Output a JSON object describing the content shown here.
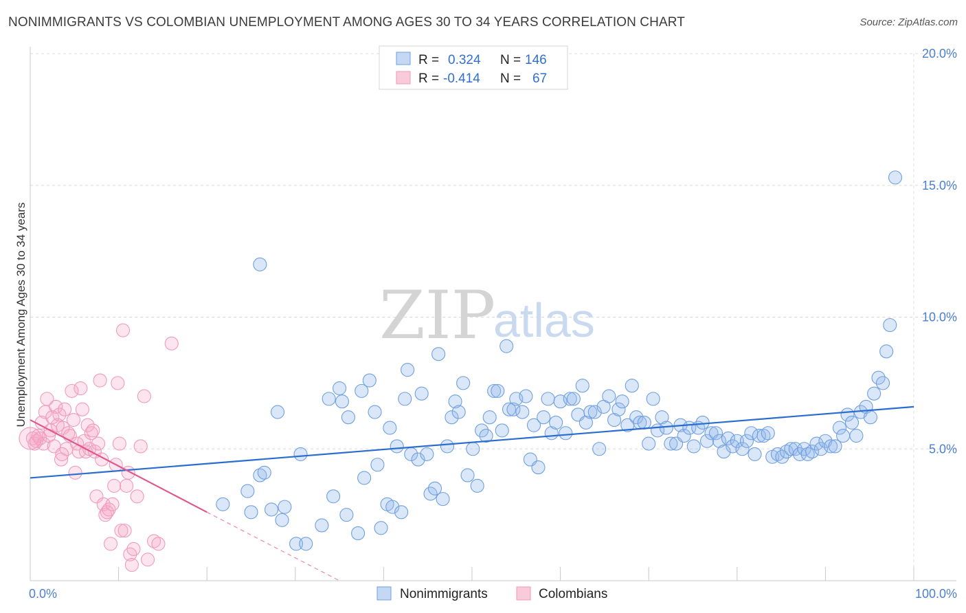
{
  "header": {
    "title": "NONIMMIGRANTS VS COLOMBIAN UNEMPLOYMENT AMONG AGES 30 TO 34 YEARS CORRELATION CHART",
    "source": "Source: ZipAtlas.com"
  },
  "watermark": {
    "zip": "ZIP",
    "atlas": "atlas"
  },
  "chart_data": {
    "type": "scatter",
    "title": "NONIMMIGRANTS VS COLOMBIAN UNEMPLOYMENT AMONG AGES 30 TO 34 YEARS CORRELATION CHART",
    "xlabel": "",
    "ylabel": "Unemployment Among Ages 30 to 34 years",
    "xlim": [
      0,
      100
    ],
    "ylim": [
      0,
      20
    ],
    "x_tick_labels": [
      "0.0%",
      "100.0%"
    ],
    "y_ticks": [
      {
        "value": 5,
        "label": "5.0%"
      },
      {
        "value": 10,
        "label": "10.0%"
      },
      {
        "value": 15,
        "label": "15.0%"
      },
      {
        "value": 20,
        "label": "20.0%"
      }
    ],
    "grid": true,
    "legend_position": "top-center",
    "colors": {
      "nonimmigrants": "#6f9fe0",
      "colombians": "#f19ab8",
      "nonimmigrants_line": "#2a6dd0",
      "colombians_line": "#e0588a"
    },
    "series": [
      {
        "name": "Nonimmigrants",
        "r": "0.324",
        "n": "146",
        "trend": {
          "x": [
            0,
            100
          ],
          "y": [
            3.9,
            6.6
          ]
        },
        "points": [
          [
            26,
            12.0
          ],
          [
            21.8,
            2.9
          ],
          [
            24.6,
            3.4
          ],
          [
            25.0,
            2.6
          ],
          [
            26.0,
            4.0
          ],
          [
            26.5,
            4.1
          ],
          [
            27.3,
            2.7
          ],
          [
            28.0,
            6.4
          ],
          [
            28.5,
            2.3
          ],
          [
            28.8,
            2.8
          ],
          [
            30.1,
            1.4
          ],
          [
            30.6,
            4.8
          ],
          [
            31.2,
            1.4
          ],
          [
            33.0,
            2.1
          ],
          [
            33.8,
            6.9
          ],
          [
            34.3,
            3.2
          ],
          [
            35.0,
            7.3
          ],
          [
            35.3,
            6.8
          ],
          [
            35.8,
            2.5
          ],
          [
            36.0,
            6.2
          ],
          [
            37.1,
            1.8
          ],
          [
            37.5,
            7.2
          ],
          [
            37.8,
            3.9
          ],
          [
            38.4,
            7.6
          ],
          [
            39.0,
            6.4
          ],
          [
            39.3,
            4.4
          ],
          [
            39.7,
            2.0
          ],
          [
            40.4,
            2.9
          ],
          [
            40.7,
            5.8
          ],
          [
            41.0,
            2.8
          ],
          [
            41.5,
            5.1
          ],
          [
            42.0,
            2.6
          ],
          [
            42.4,
            6.9
          ],
          [
            42.7,
            8.0
          ],
          [
            43.1,
            4.8
          ],
          [
            43.9,
            4.6
          ],
          [
            44.3,
            7.1
          ],
          [
            44.9,
            4.8
          ],
          [
            45.3,
            3.3
          ],
          [
            45.8,
            3.5
          ],
          [
            46.2,
            8.6
          ],
          [
            46.7,
            3.1
          ],
          [
            47.2,
            5.1
          ],
          [
            47.7,
            6.2
          ],
          [
            48.1,
            6.8
          ],
          [
            48.5,
            6.4
          ],
          [
            49.0,
            7.5
          ],
          [
            49.5,
            4.0
          ],
          [
            50.1,
            5.0
          ],
          [
            50.6,
            3.6
          ],
          [
            51.1,
            5.7
          ],
          [
            51.6,
            5.5
          ],
          [
            52.0,
            6.2
          ],
          [
            52.5,
            7.2
          ],
          [
            52.9,
            7.2
          ],
          [
            53.4,
            5.7
          ],
          [
            53.9,
            8.9
          ],
          [
            54.2,
            6.5
          ],
          [
            54.7,
            6.5
          ],
          [
            55.0,
            6.9
          ],
          [
            55.7,
            6.4
          ],
          [
            56.1,
            7.0
          ],
          [
            56.6,
            4.6
          ],
          [
            57.0,
            5.9
          ],
          [
            57.5,
            4.3
          ],
          [
            58.1,
            6.2
          ],
          [
            58.6,
            6.9
          ],
          [
            59.0,
            5.6
          ],
          [
            59.5,
            6.0
          ],
          [
            60.0,
            6.8
          ],
          [
            60.6,
            5.6
          ],
          [
            61.1,
            6.9
          ],
          [
            61.5,
            6.9
          ],
          [
            62.0,
            6.3
          ],
          [
            62.5,
            7.4
          ],
          [
            62.9,
            6.0
          ],
          [
            63.4,
            6.4
          ],
          [
            63.9,
            6.4
          ],
          [
            64.4,
            5.0
          ],
          [
            64.9,
            6.6
          ],
          [
            65.5,
            7.0
          ],
          [
            66.1,
            6.1
          ],
          [
            66.6,
            6.5
          ],
          [
            67.0,
            6.8
          ],
          [
            67.6,
            5.9
          ],
          [
            68.1,
            7.4
          ],
          [
            68.6,
            6.2
          ],
          [
            69.0,
            6.0
          ],
          [
            69.5,
            6.0
          ],
          [
            70.0,
            5.2
          ],
          [
            70.5,
            6.9
          ],
          [
            71.0,
            5.7
          ],
          [
            71.5,
            6.2
          ],
          [
            72.0,
            5.8
          ],
          [
            72.5,
            5.2
          ],
          [
            73.1,
            5.2
          ],
          [
            73.6,
            5.9
          ],
          [
            74.0,
            5.5
          ],
          [
            74.6,
            5.8
          ],
          [
            75.1,
            5.1
          ],
          [
            75.6,
            5.8
          ],
          [
            76.1,
            6.0
          ],
          [
            76.6,
            5.3
          ],
          [
            77.1,
            5.6
          ],
          [
            77.6,
            5.6
          ],
          [
            78.0,
            5.3
          ],
          [
            78.5,
            4.9
          ],
          [
            79.0,
            5.4
          ],
          [
            79.5,
            5.1
          ],
          [
            80.0,
            5.3
          ],
          [
            80.6,
            5.0
          ],
          [
            81.1,
            5.3
          ],
          [
            81.6,
            5.6
          ],
          [
            82.0,
            4.8
          ],
          [
            82.5,
            5.5
          ],
          [
            83.0,
            5.5
          ],
          [
            83.5,
            5.6
          ],
          [
            84.0,
            4.7
          ],
          [
            84.6,
            4.8
          ],
          [
            85.1,
            4.7
          ],
          [
            85.6,
            4.9
          ],
          [
            86.1,
            5.0
          ],
          [
            86.6,
            5.0
          ],
          [
            87.1,
            4.8
          ],
          [
            87.6,
            5.0
          ],
          [
            88.0,
            4.8
          ],
          [
            88.5,
            4.9
          ],
          [
            89.0,
            5.2
          ],
          [
            89.5,
            5.0
          ],
          [
            90.0,
            5.3
          ],
          [
            90.6,
            5.1
          ],
          [
            91.1,
            5.1
          ],
          [
            91.6,
            5.8
          ],
          [
            92.0,
            5.5
          ],
          [
            92.5,
            6.3
          ],
          [
            93.0,
            6.0
          ],
          [
            93.5,
            5.5
          ],
          [
            94.0,
            6.4
          ],
          [
            94.6,
            6.6
          ],
          [
            95.1,
            6.2
          ],
          [
            95.5,
            7.1
          ],
          [
            96.0,
            7.7
          ],
          [
            96.5,
            7.5
          ],
          [
            96.9,
            8.7
          ],
          [
            97.3,
            9.7
          ],
          [
            97.9,
            15.3
          ]
        ]
      },
      {
        "name": "Colombians",
        "r": "-0.414",
        "n": "67",
        "trend": {
          "x": [
            0,
            20
          ],
          "y": [
            6.1,
            2.6
          ]
        },
        "trend_extension": {
          "x": [
            20,
            35
          ],
          "y": [
            2.6,
            0.0
          ]
        },
        "points": [
          [
            0.3,
            5.4
          ],
          [
            0.5,
            5.2
          ],
          [
            0.7,
            5.3
          ],
          [
            0.9,
            5.5
          ],
          [
            1.1,
            5.4
          ],
          [
            1.3,
            6.0
          ],
          [
            1.5,
            5.2
          ],
          [
            1.7,
            6.4
          ],
          [
            1.9,
            6.9
          ],
          [
            2.1,
            5.5
          ],
          [
            2.3,
            5.7
          ],
          [
            2.5,
            6.2
          ],
          [
            2.7,
            5.1
          ],
          [
            2.9,
            6.6
          ],
          [
            3.1,
            5.9
          ],
          [
            3.3,
            6.3
          ],
          [
            3.5,
            4.6
          ],
          [
            3.7,
            5.8
          ],
          [
            3.9,
            6.5
          ],
          [
            4.1,
            5.0
          ],
          [
            4.3,
            5.6
          ],
          [
            4.5,
            5.5
          ],
          [
            4.7,
            7.2
          ],
          [
            4.9,
            6.1
          ],
          [
            5.1,
            4.1
          ],
          [
            5.3,
            5.2
          ],
          [
            5.5,
            4.9
          ],
          [
            5.7,
            7.3
          ],
          [
            5.9,
            6.5
          ],
          [
            6.1,
            5.3
          ],
          [
            6.3,
            4.9
          ],
          [
            6.5,
            5.9
          ],
          [
            6.7,
            5.0
          ],
          [
            6.9,
            5.6
          ],
          [
            7.1,
            5.7
          ],
          [
            7.3,
            4.9
          ],
          [
            7.5,
            3.2
          ],
          [
            7.7,
            5.2
          ],
          [
            7.9,
            7.6
          ],
          [
            8.1,
            4.6
          ],
          [
            8.3,
            2.9
          ],
          [
            8.5,
            2.5
          ],
          [
            8.7,
            2.6
          ],
          [
            8.9,
            2.7
          ],
          [
            9.1,
            1.4
          ],
          [
            9.3,
            2.9
          ],
          [
            9.5,
            3.6
          ],
          [
            9.7,
            4.4
          ],
          [
            9.9,
            7.5
          ],
          [
            10.1,
            5.2
          ],
          [
            10.3,
            1.9
          ],
          [
            10.5,
            9.5
          ],
          [
            10.7,
            1.9
          ],
          [
            10.9,
            3.6
          ],
          [
            11.1,
            4.1
          ],
          [
            11.3,
            1.0
          ],
          [
            11.5,
            0.6
          ],
          [
            11.7,
            1.2
          ],
          [
            12.1,
            3.2
          ],
          [
            12.5,
            5.1
          ],
          [
            12.9,
            7.0
          ],
          [
            13.3,
            0.8
          ],
          [
            14.0,
            1.5
          ],
          [
            14.5,
            1.4
          ],
          [
            16.0,
            9.0
          ],
          [
            3.6,
            4.8
          ],
          [
            0.0,
            5.4
          ]
        ]
      }
    ]
  },
  "legend": {
    "rows": [
      {
        "r_label": "R =",
        "r_value": "0.324",
        "n_label": "N =",
        "n_value": "146"
      },
      {
        "r_label": "R =",
        "r_value": "-0.414",
        "n_label": "N =",
        "n_value": "67"
      }
    ],
    "bottom": [
      "Nonimmigrants",
      "Colombians"
    ]
  }
}
